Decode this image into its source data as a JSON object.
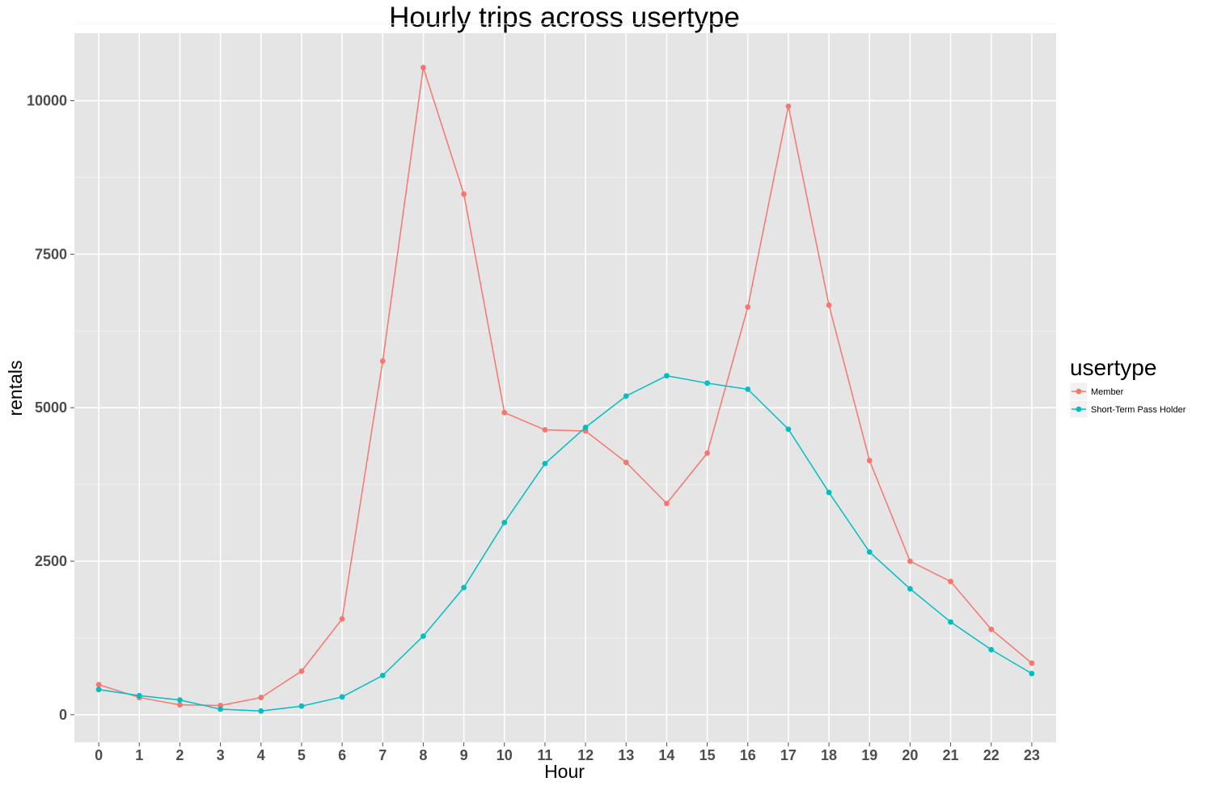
{
  "chart_data": {
    "type": "line",
    "title": "Hourly trips across usertype",
    "xlabel": "Hour",
    "ylabel": "rentals",
    "x": [
      0,
      1,
      2,
      3,
      4,
      5,
      6,
      7,
      8,
      9,
      10,
      11,
      12,
      13,
      14,
      15,
      16,
      17,
      18,
      19,
      20,
      21,
      22,
      23
    ],
    "x_tick_labels": [
      "0",
      "1",
      "2",
      "3",
      "4",
      "5",
      "6",
      "7",
      "8",
      "9",
      "10",
      "11",
      "12",
      "13",
      "14",
      "15",
      "16",
      "17",
      "18",
      "19",
      "20",
      "21",
      "22",
      "23"
    ],
    "y_ticks": [
      0,
      2500,
      5000,
      7500,
      10000
    ],
    "y_tick_labels": [
      "0",
      "2500",
      "5000",
      "7500",
      "10000"
    ],
    "ylim": [
      -450,
      11100
    ],
    "xlim": [
      -0.6,
      23.6
    ],
    "grid": true,
    "legend": {
      "title": "usertype",
      "position": "right"
    },
    "series": [
      {
        "name": "Member",
        "color": "#f8766d",
        "values": [
          490,
          280,
          160,
          150,
          280,
          710,
          1560,
          5760,
          10540,
          8480,
          4920,
          4640,
          4620,
          4110,
          3440,
          4260,
          6640,
          9910,
          6670,
          4140,
          2500,
          2170,
          1390,
          840
        ]
      },
      {
        "name": "Short-Term Pass Holder",
        "color": "#00bfc4",
        "values": [
          410,
          310,
          240,
          90,
          60,
          140,
          290,
          640,
          1280,
          2070,
          3130,
          4090,
          4680,
          5190,
          5520,
          5400,
          5300,
          4650,
          3620,
          2650,
          2050,
          1510,
          1060,
          670
        ]
      }
    ]
  }
}
